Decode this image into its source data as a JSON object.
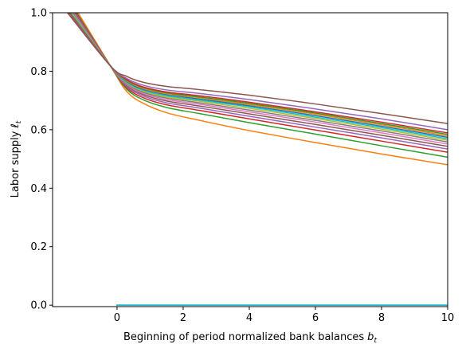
{
  "chart_data": {
    "type": "line",
    "title": "",
    "xlabel": "Beginning of period normalized bank balances",
    "xlabel_sub": "t",
    "xlabel_var": "b",
    "ylabel": "Labor supply",
    "ylabel_var": "ℓ",
    "ylabel_sub": "t",
    "xlim": [
      -1.95,
      10
    ],
    "ylim": [
      -0.005,
      1.0
    ],
    "xticks": [
      0,
      2,
      4,
      6,
      8,
      10
    ],
    "xtick_labels": [
      "0",
      "2",
      "4",
      "6",
      "8",
      "10"
    ],
    "yticks": [
      0.0,
      0.2,
      0.4,
      0.6,
      0.8,
      1.0
    ],
    "ytick_labels": [
      "0.0",
      "0.2",
      "0.4",
      "0.6",
      "0.8",
      "1.0"
    ],
    "grid": false,
    "legend": "none",
    "pivot": {
      "x": -0.2,
      "y": 0.818
    },
    "series": [
      {
        "color": "#ff7f0e",
        "x": [
          -1.5,
          -0.2,
          0.3,
          0.8,
          1.5,
          2.5,
          4,
          6,
          8,
          10
        ],
        "y": [
          1.06,
          0.818,
          0.73,
          0.69,
          0.658,
          0.632,
          0.597,
          0.556,
          0.517,
          0.48
        ]
      },
      {
        "color": "#2ca02c",
        "x": [
          -1.5,
          -0.2,
          0.3,
          0.8,
          1.5,
          2.5,
          4,
          6,
          8,
          10
        ],
        "y": [
          1.05,
          0.818,
          0.738,
          0.702,
          0.676,
          0.655,
          0.624,
          0.585,
          0.545,
          0.506
        ]
      },
      {
        "color": "#d62728",
        "x": [
          -1.5,
          -0.2,
          0.3,
          0.8,
          1.5,
          2.5,
          4,
          6,
          8,
          10
        ],
        "y": [
          1.045,
          0.818,
          0.743,
          0.709,
          0.685,
          0.666,
          0.637,
          0.599,
          0.561,
          0.523
        ]
      },
      {
        "color": "#9467bd",
        "x": [
          -1.5,
          -0.2,
          0.3,
          0.8,
          1.5,
          2.5,
          4,
          6,
          8,
          10
        ],
        "y": [
          1.04,
          0.818,
          0.747,
          0.715,
          0.692,
          0.674,
          0.646,
          0.609,
          0.572,
          0.534
        ]
      },
      {
        "color": "#8c564b",
        "x": [
          -1.5,
          -0.2,
          0.3,
          0.8,
          1.5,
          2.5,
          4,
          6,
          8,
          10
        ],
        "y": [
          1.035,
          0.818,
          0.751,
          0.72,
          0.698,
          0.681,
          0.654,
          0.618,
          0.581,
          0.543
        ]
      },
      {
        "color": "#e377c2",
        "x": [
          -1.5,
          -0.2,
          0.3,
          0.8,
          1.5,
          2.5,
          4,
          6,
          8,
          10
        ],
        "y": [
          1.03,
          0.818,
          0.754,
          0.724,
          0.703,
          0.687,
          0.661,
          0.626,
          0.589,
          0.551
        ]
      },
      {
        "color": "#7f7f7f",
        "x": [
          -1.5,
          -0.2,
          0.3,
          0.8,
          1.5,
          2.5,
          4,
          6,
          8,
          10
        ],
        "y": [
          1.025,
          0.818,
          0.757,
          0.728,
          0.708,
          0.692,
          0.667,
          0.632,
          0.596,
          0.558
        ]
      },
      {
        "color": "#bcbd22",
        "x": [
          -1.5,
          -0.2,
          0.3,
          0.8,
          1.5,
          2.5,
          4,
          6,
          8,
          10
        ],
        "y": [
          1.02,
          0.818,
          0.76,
          0.732,
          0.712,
          0.697,
          0.673,
          0.638,
          0.602,
          0.564
        ]
      },
      {
        "color": "#17becf",
        "x": [
          -1.5,
          -0.2,
          0.3,
          0.8,
          1.5,
          2.5,
          4,
          6,
          8,
          10
        ],
        "y": [
          1.015,
          0.818,
          0.762,
          0.735,
          0.716,
          0.701,
          0.678,
          0.643,
          0.607,
          0.569
        ]
      },
      {
        "color": "#1f77b4",
        "x": [
          -1.5,
          -0.2,
          0.3,
          0.8,
          1.5,
          2.5,
          4,
          6,
          8,
          10
        ],
        "y": [
          1.012,
          0.818,
          0.765,
          0.738,
          0.72,
          0.705,
          0.682,
          0.648,
          0.612,
          0.574
        ]
      },
      {
        "color": "#ff7f0e",
        "x": [
          -1.5,
          -0.2,
          0.3,
          0.8,
          1.5,
          2.5,
          4,
          6,
          8,
          10
        ],
        "y": [
          1.01,
          0.818,
          0.767,
          0.741,
          0.723,
          0.709,
          0.686,
          0.653,
          0.617,
          0.579
        ]
      },
      {
        "color": "#2ca02c",
        "x": [
          -1.5,
          -0.2,
          0.3,
          0.8,
          1.5,
          2.5,
          4,
          6,
          8,
          10
        ],
        "y": [
          1.008,
          0.818,
          0.769,
          0.744,
          0.726,
          0.712,
          0.69,
          0.657,
          0.621,
          0.584
        ]
      },
      {
        "color": "#d62728",
        "x": [
          -1.5,
          -0.2,
          0.3,
          0.8,
          1.5,
          2.5,
          4,
          6,
          8,
          10
        ],
        "y": [
          1.006,
          0.818,
          0.771,
          0.746,
          0.729,
          0.716,
          0.694,
          0.661,
          0.626,
          0.589
        ]
      },
      {
        "color": "#9467bd",
        "x": [
          -1.5,
          -0.2,
          0.3,
          0.8,
          1.5,
          2.5,
          4,
          6,
          8,
          10
        ],
        "y": [
          1.003,
          0.818,
          0.775,
          0.752,
          0.736,
          0.724,
          0.703,
          0.671,
          0.637,
          0.6
        ]
      },
      {
        "color": "#8c564b",
        "x": [
          -1.5,
          -0.2,
          0.3,
          0.8,
          1.5,
          2.5,
          4,
          6,
          8,
          10
        ],
        "y": [
          1.0,
          0.818,
          0.782,
          0.762,
          0.748,
          0.737,
          0.718,
          0.688,
          0.655,
          0.621
        ]
      },
      {
        "color": "#1f77b4",
        "x": [
          0,
          10
        ],
        "y": [
          0.0,
          0.0
        ]
      },
      {
        "color": "#17becf",
        "x": [
          0,
          10
        ],
        "y": [
          0.0,
          0.0
        ]
      }
    ]
  }
}
